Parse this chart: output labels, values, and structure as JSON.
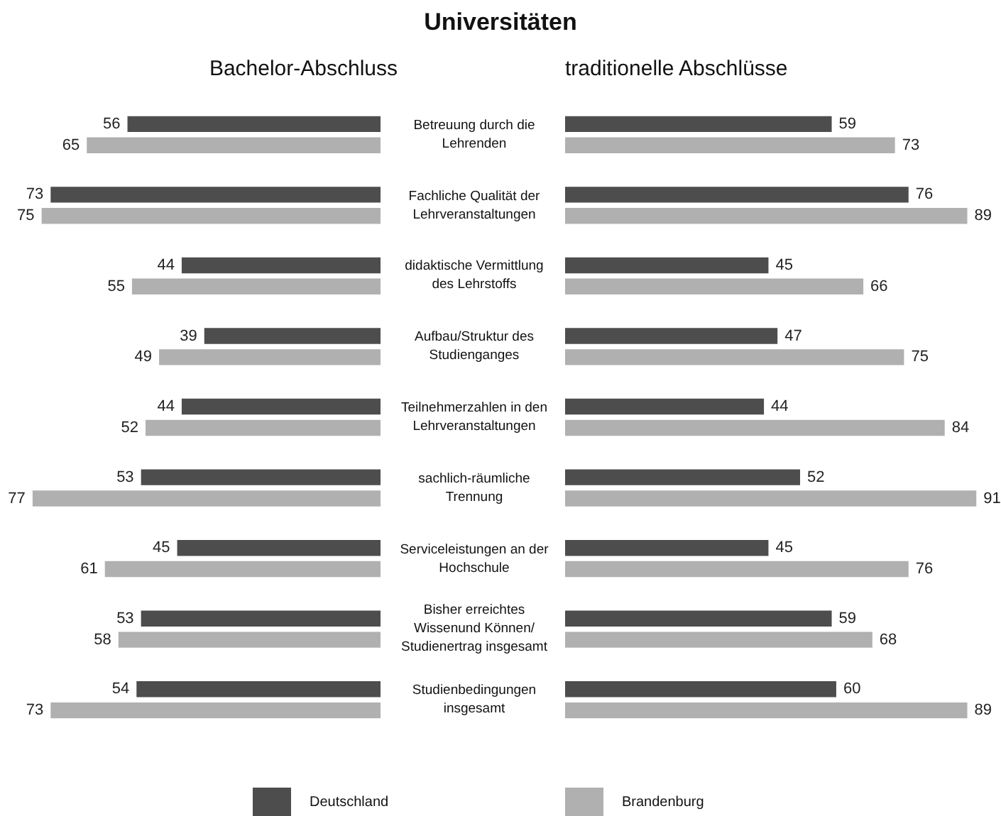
{
  "chart_data": [
    {
      "type": "bar",
      "orientation": "horizontal",
      "title": "Universitäten",
      "subtitle": "Bachelor-Abschluss",
      "categories": [
        "Betreuung durch die Lehrenden",
        "Fachliche Qualität der Lehrveranstaltungen",
        "didaktische Vermittlung des Lehrstoffs",
        "Aufbau/Struktur des Studienganges",
        "Teilnehmerzahlen in den Lehrveranstaltungen",
        "sachlich-räumliche Trennung",
        "Serviceleistungen an der Hochschule",
        "Bisher erreichtes Wissenund Können/ Studienertrag insgesamt",
        "Studienbedingungen insgesamt"
      ],
      "series": [
        {
          "name": "Deutschland",
          "color": "#4d4d4d",
          "values": [
            56,
            73,
            44,
            39,
            44,
            53,
            45,
            53,
            54
          ]
        },
        {
          "name": "Brandenburg",
          "color": "#b0b0b0",
          "values": [
            65,
            75,
            55,
            49,
            52,
            77,
            61,
            58,
            73
          ]
        }
      ],
      "data_labels": true,
      "tick_labels": "y",
      "legend": "bottom"
    },
    {
      "type": "bar",
      "orientation": "horizontal",
      "subtitle": "traditionelle Abschlüsse",
      "categories": [
        null,
        null,
        null,
        null,
        null,
        null,
        null,
        null,
        null
      ],
      "series": [
        {
          "color": "#4d4d4d",
          "values": [
            59,
            76,
            45,
            47,
            44,
            52,
            45,
            59,
            60
          ]
        },
        {
          "color": "#b0b0b0",
          "values": [
            73,
            89,
            66,
            75,
            84,
            91,
            76,
            68,
            89
          ]
        }
      ],
      "data_labels": true
    }
  ]
}
